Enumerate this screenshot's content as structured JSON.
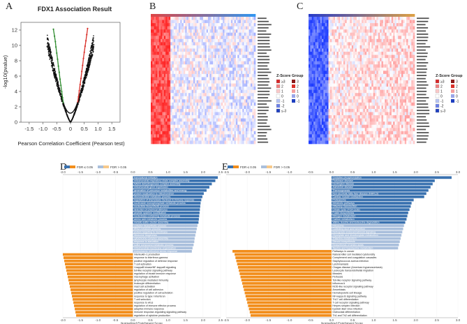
{
  "figure": {
    "panel_letters": [
      "A",
      "B",
      "C",
      "D",
      "E"
    ],
    "colors": {
      "red": "#d9302a",
      "green": "#2e8b2e",
      "blue_dark": "#3a72b0",
      "blue_light": "#a9bfdc",
      "orange": "#f28e1c",
      "heat_red": "#d62728",
      "heat_blue": "#1f3fbf"
    }
  },
  "chart_data": [
    {
      "panel": "A",
      "type": "scatter",
      "title": "FDX1 Association Result",
      "xlabel": "Pearson Correlation Coefficient (Pearson test)",
      "ylabel": "-log10(pvalue)",
      "xlim": [
        -1.8,
        1.8
      ],
      "ylim": [
        0,
        13
      ],
      "xticks": [
        "-1.5",
        "-1.0",
        "-0.5",
        "0",
        "0.5",
        "1.0",
        "1.5"
      ],
      "xtick_values": [
        -1.5,
        -1.0,
        -0.5,
        0,
        0.5,
        1.0,
        1.5
      ],
      "yticks": [
        "0",
        "2",
        "4",
        "6",
        "8",
        "10",
        "12"
      ],
      "ytick_values": [
        0,
        2,
        4,
        6,
        8,
        10,
        12
      ],
      "series": [
        {
          "name": "negative",
          "color": "#2e8b2e",
          "points": [
            [
              -0.62,
              12.1
            ],
            [
              -0.58,
              11.2
            ],
            [
              -0.55,
              10.5
            ],
            [
              -0.53,
              9.8
            ],
            [
              -0.5,
              9.0
            ],
            [
              -0.47,
              8.2
            ],
            [
              -0.44,
              7.3
            ],
            [
              -0.41,
              6.5
            ],
            [
              -0.38,
              5.6
            ],
            [
              -0.35,
              4.8
            ],
            [
              -0.32,
              4.0
            ],
            [
              -0.29,
              3.2
            ],
            [
              -0.26,
              2.5
            ]
          ]
        },
        {
          "name": "positive",
          "color": "#d9302a",
          "points": [
            [
              0.62,
              12.2
            ],
            [
              0.59,
              11.4
            ],
            [
              0.56,
              10.6
            ],
            [
              0.53,
              9.9
            ],
            [
              0.5,
              9.1
            ],
            [
              0.47,
              8.3
            ],
            [
              0.44,
              7.4
            ],
            [
              0.41,
              6.6
            ],
            [
              0.38,
              5.7
            ],
            [
              0.35,
              4.9
            ],
            [
              0.32,
              4.1
            ],
            [
              0.29,
              3.3
            ],
            [
              0.26,
              2.6
            ]
          ]
        }
      ]
    },
    {
      "panel": "B",
      "type": "heatmap",
      "legend_title": "Z-Score",
      "legend_group_title": "Group",
      "legend_values": [
        "≥3",
        "2",
        "1",
        "0",
        "-1",
        "-2",
        "≤-3"
      ],
      "group_values": [
        "3",
        "2",
        "1",
        "0",
        "-1"
      ]
    },
    {
      "panel": "C",
      "type": "heatmap",
      "legend_title": "Z-Score",
      "legend_group_title": "Group",
      "legend_values": [
        "≥3",
        "2",
        "1",
        "0",
        "-1",
        "-2",
        "≤-3"
      ],
      "group_values": [
        "3",
        "2",
        "1",
        "0",
        "-1"
      ]
    },
    {
      "panel": "D",
      "type": "bar",
      "orientation": "horizontal",
      "xlabel": "Normalized Enrichment Score",
      "xlim": [
        -2.0,
        2.5
      ],
      "xticks": [
        "-2.0",
        "-1.5",
        "-1.0",
        "-0.5",
        "0.0",
        "0.5",
        "1.0",
        "1.5",
        "2.0",
        "2.5"
      ],
      "xtick_values": [
        -2.0,
        -1.5,
        -1.0,
        -0.5,
        0.0,
        0.5,
        1.0,
        1.5,
        2.0,
        2.5
      ],
      "legend": [
        "FDR ≤ 0.05",
        "FDR > 0.05"
      ],
      "categories": [
        "translational initiation",
        "mitochondrial respiratory chain complex assembly",
        "NADH dehydrogenase complex assembly",
        "mitochondrial gene expression",
        "generation of precursor metabolites and energy",
        "protein localization to mitochondrion",
        "ribonucleotide metabolic process",
        "regulation of chemotaxis involved in immune response",
        "nucleoside monophosphate metabolic process",
        "nucleotide biosynthetic process",
        "detection of chemical stimulus",
        "peptide cysteine modification",
        "nucleobase-containing metabolic process",
        "amino acid metabolic process",
        "metallo-sulfur cluster assembly",
        "cofactor biosynthetic process",
        "tRNA metabolic process",
        "protein targeting to membrane",
        "ribosome biogenesis",
        "cytochrome complex assembly",
        "response to starvation",
        "sulfur compound metabolic process",
        "mitochondrial membrane organization",
        "endoplasmic reticulum stress response",
        "interleukin-1 production",
        "response to interferon-gamma",
        "positive regulation of defense response",
        "T cell activation",
        "I-kappaB kinase/NF-kappaB signaling",
        "toll-like receptor signaling pathway",
        "regulation of innate immune response",
        "macrophage activation",
        "lymphocyte mediated immunity",
        "leukocyte differentiation",
        "mast cell activation",
        "regulation of cell adhesion",
        "positive regulation of cell activation",
        "response to type I interferon",
        "T cell selection",
        "response to virus",
        "regulation of immune effector process",
        "adaptive immune response",
        "immune response-regulating signaling pathway",
        "regulation of cytokine production"
      ],
      "values": [
        2.42,
        2.35,
        2.25,
        2.18,
        2.1,
        2.02,
        1.98,
        1.95,
        1.93,
        1.92,
        1.91,
        1.9,
        1.89,
        1.88,
        1.87,
        1.84,
        1.82,
        1.8,
        1.78,
        1.76,
        1.75,
        1.73,
        1.7,
        1.68,
        -2.0,
        -1.98,
        -1.96,
        -1.94,
        -1.92,
        -1.9,
        -1.88,
        -1.86,
        -1.84,
        -1.82,
        -1.8,
        -1.78,
        -1.76,
        -1.74,
        -1.72,
        -1.7,
        -1.68,
        -1.66,
        -1.64,
        -1.62
      ],
      "significant": [
        true,
        true,
        true,
        true,
        true,
        true,
        true,
        true,
        true,
        true,
        true,
        true,
        true,
        true,
        true,
        false,
        false,
        false,
        false,
        false,
        false,
        false,
        false,
        false,
        true,
        true,
        true,
        true,
        true,
        true,
        true,
        true,
        true,
        true,
        true,
        true,
        true,
        true,
        true,
        true,
        true,
        true,
        true,
        true
      ]
    },
    {
      "panel": "E",
      "type": "bar",
      "orientation": "horizontal",
      "xlabel": "Normalized Enrichment Score",
      "xlim": [
        -2.5,
        3.0
      ],
      "xticks": [
        "-2.5",
        "-2.0",
        "-1.5",
        "-1.0",
        "-0.5",
        "0.0",
        "0.5",
        "1.0",
        "1.5",
        "2.0",
        "2.5",
        "3.0"
      ],
      "xtick_values": [
        -2.5,
        -2.0,
        -1.5,
        -1.0,
        -0.5,
        0.0,
        0.5,
        1.0,
        1.5,
        2.0,
        2.5,
        3.0
      ],
      "legend": [
        "FDR ≤ 0.05",
        "FDR > 0.05"
      ],
      "categories": [
        "Oxidative phosphorylation",
        "Parkinson disease",
        "Huntington disease",
        "Alzheimer disease",
        "Thermogenesis",
        "Non-alcoholic fatty liver disease (NAFLD)",
        "Cardiac muscle contraction",
        "Proteasome",
        "Metabolic pathways",
        "Olfactory transduction",
        "Citrate cycle (TCA cycle)",
        "Folate biosynthesis",
        "Nitrogen metabolism",
        "Carbon metabolism",
        "Valine, leucine and isoleucine degradation",
        "Ribosome",
        "Collecting duct acid secretion",
        "Retrograde endocannabinoid signaling",
        "Glyoxylate and dicarboxylate metabolism",
        "Thiamine metabolism",
        "Steroid biosynthesis",
        "Biosynthesis of amino acids",
        "Taurine and hypotaurine metabolism",
        "Pathways in cancer",
        "Natural killer cell mediated cytotoxicity",
        "Complement and coagulation cascades",
        "Staphylococcus aureus infection",
        "Leishmaniasis",
        "Chagas disease (American trypanosomiasis)",
        "Leukocyte transendothelial migration",
        "Measles",
        "Pertussis",
        "Toll-like receptor signaling pathway",
        "Influenza A",
        "NOD-like receptor signaling pathway",
        "Amoebiasis",
        "Hematopoietic cell lineage",
        "NF-kappa B signaling pathway",
        "Th17 cell differentiation",
        "T cell receptor signaling pathway",
        "Herpes simplex infection",
        "Epstein-Barr virus infection",
        "Osteoclast differentiation",
        "Th1 and Th2 cell differentiation"
      ],
      "values": [
        2.85,
        2.45,
        2.4,
        2.35,
        2.3,
        2.25,
        2.2,
        1.95,
        1.9,
        1.88,
        1.85,
        1.82,
        1.8,
        1.78,
        1.75,
        1.72,
        1.7,
        1.68,
        1.66,
        1.64,
        1.62,
        1.6,
        1.58,
        -2.35,
        -2.3,
        -2.28,
        -2.26,
        -2.24,
        -2.22,
        -2.2,
        -2.18,
        -2.16,
        -2.14,
        -2.12,
        -2.1,
        -2.08,
        -2.06,
        -2.04,
        -2.02,
        -2.0,
        -1.98,
        -1.96,
        -1.94,
        -1.92
      ],
      "significant": [
        true,
        true,
        true,
        true,
        true,
        true,
        true,
        true,
        true,
        true,
        true,
        true,
        true,
        true,
        true,
        false,
        false,
        false,
        false,
        false,
        false,
        false,
        false,
        true,
        true,
        true,
        true,
        true,
        true,
        true,
        true,
        true,
        true,
        true,
        true,
        true,
        true,
        true,
        true,
        true,
        true,
        true,
        true,
        true
      ]
    }
  ]
}
